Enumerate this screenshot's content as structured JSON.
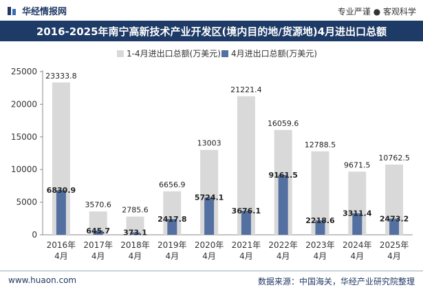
{
  "header": {
    "brand": "华经情报网",
    "tagline": "专业严谨 ● 客观科学"
  },
  "footer": {
    "website": "www.huaon.com",
    "source": "数据来源：中国海关，华经产业研究院整理"
  },
  "colors": {
    "total": "#d9d9d9",
    "april": "#5470a0",
    "title_bg": "#1e3a66"
  },
  "chart_data": {
    "type": "bar",
    "title": "2016-2025年南宁高新技术产业开发区(境内目的地/货源地)4月进出口总额",
    "categories": [
      "2016年4月",
      "2017年4月",
      "2018年4月",
      "2019年4月",
      "2020年4月",
      "2021年4月",
      "2022年4月",
      "2023年4月",
      "2024年4月",
      "2025年4月"
    ],
    "series": [
      {
        "name": "1-4月进出口总额(万美元)",
        "values": [
          23333.8,
          3570.6,
          2785.6,
          6656.9,
          13003,
          21221.4,
          16059.6,
          12788.5,
          9671.5,
          10762.5
        ]
      },
      {
        "name": "4月进出口总额(万美元)",
        "values": [
          6830.9,
          645.7,
          373.1,
          2417.8,
          5724.1,
          3676.1,
          9161.5,
          2218.6,
          3311.4,
          2473.2
        ]
      }
    ],
    "value_labels": {
      "total": [
        "23333.8",
        "3570.6",
        "2785.6",
        "6656.9",
        "13003",
        "21221.4",
        "16059.6",
        "12788.5",
        "9671.5",
        "10762.5"
      ],
      "april": [
        "6830.9",
        "645.7",
        "373.1",
        "2417.8",
        "5724.1",
        "3676.1",
        "9161.5",
        "2218.6",
        "3311.4",
        "2473.2"
      ]
    },
    "y_ticks": [
      "0",
      "5000",
      "10000",
      "15000",
      "20000",
      "25000"
    ],
    "ylim": [
      0,
      25000
    ],
    "legend_position": "top-center",
    "grid": false
  }
}
